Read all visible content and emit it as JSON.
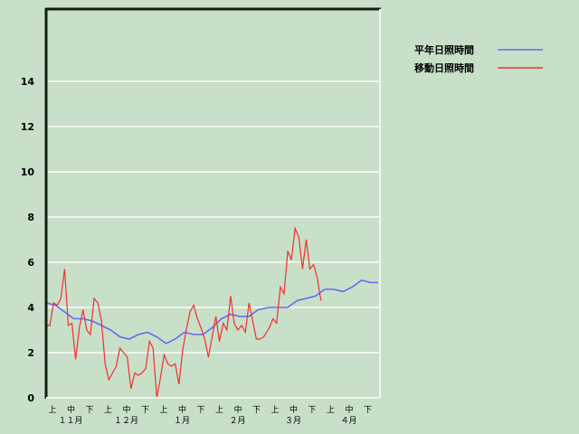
{
  "chart_data": {
    "type": "line",
    "title": "",
    "xlabel": "",
    "ylabel": "",
    "ylim": [
      0,
      17.2
    ],
    "yticks": [
      "0",
      "2",
      "4",
      "6",
      "8",
      "10",
      "12",
      "14"
    ],
    "grid": true,
    "legend_position": "top-right",
    "x_period_labels": [
      "上",
      "中",
      "下",
      "上",
      "中",
      "下",
      "上",
      "中",
      "下",
      "上",
      "中",
      "下",
      "上",
      "中",
      "下",
      "上",
      "中",
      "下"
    ],
    "x_month_labels": [
      "１１月",
      "１２月",
      "１月",
      "２月",
      "３月",
      "４月"
    ],
    "series": [
      {
        "name": "平年日照時間",
        "color": "#6868ee",
        "x": [
          "11/01",
          "11/06",
          "11/11",
          "11/16",
          "11/21",
          "11/26",
          "12/01",
          "12/06",
          "12/11",
          "12/16",
          "12/21",
          "12/26",
          "12/31",
          "01/05",
          "01/10",
          "01/15",
          "01/20",
          "01/25",
          "01/30",
          "02/04",
          "02/09",
          "02/14",
          "02/19",
          "02/24",
          "03/02",
          "03/07",
          "03/12",
          "03/17",
          "03/22",
          "03/27",
          "04/01",
          "04/06",
          "04/11",
          "04/16",
          "04/21",
          "04/26",
          "04/30"
        ],
        "values": [
          4.2,
          4.1,
          3.8,
          3.5,
          3.5,
          3.4,
          3.2,
          3.0,
          2.7,
          2.6,
          2.8,
          2.9,
          2.7,
          2.4,
          2.6,
          2.9,
          2.8,
          2.8,
          3.1,
          3.5,
          3.7,
          3.6,
          3.6,
          3.9,
          4.0,
          4.0,
          4.0,
          4.3,
          4.4,
          4.5,
          4.8,
          4.8,
          4.7,
          4.9,
          5.2,
          5.1,
          5.1
        ]
      },
      {
        "name": "移動日照時間",
        "color": "#f03030",
        "x": [
          "11/01",
          "11/03",
          "11/05",
          "11/07",
          "11/09",
          "11/11",
          "11/13",
          "11/15",
          "11/17",
          "11/19",
          "11/21",
          "11/23",
          "11/25",
          "11/27",
          "11/29",
          "12/01",
          "12/03",
          "12/05",
          "12/07",
          "12/09",
          "12/11",
          "12/13",
          "12/15",
          "12/17",
          "12/19",
          "12/21",
          "12/23",
          "12/25",
          "12/27",
          "12/29",
          "12/31",
          "01/02",
          "01/04",
          "01/06",
          "01/08",
          "01/10",
          "01/12",
          "01/14",
          "01/16",
          "01/18",
          "01/20",
          "01/22",
          "01/24",
          "01/26",
          "01/28",
          "01/30",
          "02/01",
          "02/03",
          "02/05",
          "02/07",
          "02/09",
          "02/11",
          "02/13",
          "02/15",
          "02/17",
          "02/19",
          "02/21",
          "02/23",
          "02/25",
          "02/27",
          "03/02",
          "03/04",
          "03/06",
          "03/08",
          "03/10",
          "03/12",
          "03/14",
          "03/16",
          "03/18",
          "03/20",
          "03/22",
          "03/24",
          "03/26",
          "03/28",
          "03/30"
        ],
        "values": [
          3.2,
          3.2,
          4.2,
          4.1,
          4.4,
          5.7,
          3.2,
          3.3,
          1.7,
          3.1,
          3.9,
          3.0,
          2.8,
          4.4,
          4.2,
          3.4,
          1.5,
          0.8,
          1.1,
          1.4,
          2.2,
          2.0,
          1.8,
          0.4,
          1.1,
          1.0,
          1.1,
          1.3,
          2.5,
          2.2,
          0.0,
          0.9,
          1.9,
          1.5,
          1.4,
          1.5,
          0.6,
          2.1,
          3.0,
          3.8,
          4.1,
          3.5,
          3.1,
          2.6,
          1.8,
          2.7,
          3.6,
          2.5,
          3.3,
          3.0,
          4.5,
          3.3,
          3.0,
          3.2,
          2.9,
          4.2,
          3.4,
          2.6,
          2.6,
          2.7,
          3.1,
          3.5,
          3.3,
          4.9,
          4.6,
          6.5,
          6.1,
          7.5,
          7.1,
          5.7,
          7.0,
          5.7,
          5.9,
          5.3,
          4.3
        ]
      }
    ]
  }
}
